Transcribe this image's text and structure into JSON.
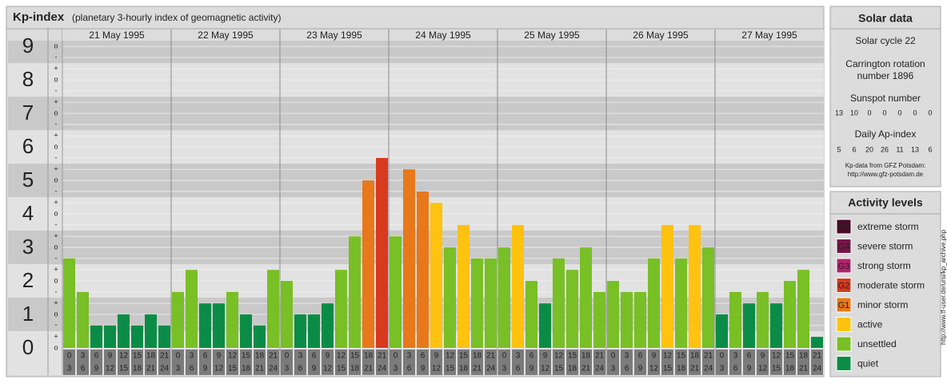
{
  "chart_data": {
    "type": "bar",
    "title": "Kp-index",
    "subtitle": "(planetary 3-hourly index of geomagnetic activity)",
    "ylim": [
      0,
      9.17
    ],
    "yticks": [
      0,
      1,
      2,
      3,
      4,
      5,
      6,
      7,
      8,
      9
    ],
    "minor_yticks": [
      {
        "value": 0,
        "label": "o"
      },
      {
        "value": 0.33,
        "label": "+"
      },
      {
        "value": 0.67,
        "label": "-"
      },
      {
        "value": 1,
        "label": "o"
      },
      {
        "value": 1.33,
        "label": "+"
      },
      {
        "value": 1.67,
        "label": "-"
      },
      {
        "value": 2,
        "label": "o"
      },
      {
        "value": 2.33,
        "label": "+"
      },
      {
        "value": 2.67,
        "label": "-"
      },
      {
        "value": 3,
        "label": "o"
      },
      {
        "value": 3.33,
        "label": "+"
      },
      {
        "value": 3.67,
        "label": "-"
      },
      {
        "value": 4,
        "label": "o"
      },
      {
        "value": 4.33,
        "label": "+"
      },
      {
        "value": 4.67,
        "label": "-"
      },
      {
        "value": 5,
        "label": "o"
      },
      {
        "value": 5.33,
        "label": "+"
      },
      {
        "value": 5.67,
        "label": "-"
      },
      {
        "value": 6,
        "label": "o"
      },
      {
        "value": 6.33,
        "label": "+"
      },
      {
        "value": 6.67,
        "label": "-"
      },
      {
        "value": 7,
        "label": "o"
      },
      {
        "value": 7.33,
        "label": "+"
      },
      {
        "value": 7.67,
        "label": "-"
      },
      {
        "value": 8,
        "label": "o"
      },
      {
        "value": 8.33,
        "label": "+"
      },
      {
        "value": 8.67,
        "label": "-"
      },
      {
        "value": 9,
        "label": "o"
      }
    ],
    "hours": [
      [
        "0",
        "3"
      ],
      [
        "3",
        "6"
      ],
      [
        "6",
        "9"
      ],
      [
        "9",
        "12"
      ],
      [
        "12",
        "15"
      ],
      [
        "15",
        "18"
      ],
      [
        "18",
        "21"
      ],
      [
        "21",
        "24"
      ]
    ],
    "days": [
      {
        "date": "21 May 1995",
        "values": [
          2.67,
          1.67,
          0.67,
          0.67,
          1,
          0.67,
          1,
          0.67
        ],
        "colors": [
          "#79bf26",
          "#79bf26",
          "#0b8c46",
          "#0b8c46",
          "#0b8c46",
          "#0b8c46",
          "#0b8c46",
          "#0b8c46"
        ]
      },
      {
        "date": "22 May 1995",
        "values": [
          1.67,
          2.33,
          1.33,
          1.33,
          1.67,
          1,
          0.67,
          2.33
        ],
        "colors": [
          "#79bf26",
          "#79bf26",
          "#0b8c46",
          "#0b8c46",
          "#79bf26",
          "#0b8c46",
          "#0b8c46",
          "#79bf26"
        ]
      },
      {
        "date": "23 May 1995",
        "values": [
          2,
          1,
          1,
          1.33,
          2.33,
          3.33,
          5,
          5.67
        ],
        "colors": [
          "#79bf26",
          "#0b8c46",
          "#0b8c46",
          "#0b8c46",
          "#79bf26",
          "#79bf26",
          "#e8781a",
          "#d73a1e"
        ]
      },
      {
        "date": "24 May 1995",
        "values": [
          3.33,
          5.33,
          4.67,
          4.33,
          3,
          3.67,
          2.67,
          2.67
        ],
        "colors": [
          "#79bf26",
          "#e8781a",
          "#e8781a",
          "#ffc20e",
          "#79bf26",
          "#ffc20e",
          "#79bf26",
          "#79bf26"
        ]
      },
      {
        "date": "25 May 1995",
        "values": [
          3,
          3.67,
          2,
          1.33,
          2.67,
          2.33,
          3,
          1.67
        ],
        "colors": [
          "#79bf26",
          "#ffc20e",
          "#79bf26",
          "#0b8c46",
          "#79bf26",
          "#79bf26",
          "#79bf26",
          "#79bf26"
        ]
      },
      {
        "date": "26 May 1995",
        "values": [
          2,
          1.67,
          1.67,
          2.67,
          3.67,
          2.67,
          3.67,
          3
        ],
        "colors": [
          "#79bf26",
          "#79bf26",
          "#79bf26",
          "#79bf26",
          "#ffc20e",
          "#79bf26",
          "#ffc20e",
          "#79bf26"
        ]
      },
      {
        "date": "27 May 1995",
        "values": [
          1,
          1.67,
          1.33,
          1.67,
          1.33,
          2,
          2.33,
          0.33
        ],
        "colors": [
          "#0b8c46",
          "#79bf26",
          "#0b8c46",
          "#79bf26",
          "#0b8c46",
          "#79bf26",
          "#79bf26",
          "#0b8c46"
        ]
      }
    ]
  },
  "solar_data": {
    "title": "Solar data",
    "solar_cycle": "Solar cycle 22",
    "carrington": [
      "Carrington rotation",
      "number 1896"
    ],
    "sunspot_title": "Sunspot number",
    "sunspot": [
      13,
      10,
      0,
      0,
      0,
      0,
      0
    ],
    "ap_title": "Daily Ap-index",
    "ap": [
      5,
      6,
      20,
      26,
      11,
      13,
      6
    ],
    "source": [
      "Kp-data from GFZ Potsdam:",
      "http://www.gfz-potsdam.de"
    ]
  },
  "activity_levels": {
    "title": "Activity levels",
    "items": [
      {
        "badge": "G5",
        "name": "extreme storm",
        "color": "#4a0a28"
      },
      {
        "badge": "G4",
        "name": "severe storm",
        "color": "#7a1448"
      },
      {
        "badge": "G3",
        "name": "strong storm",
        "color": "#b0246b"
      },
      {
        "badge": "G2",
        "name": "moderate storm",
        "color": "#d73a1e"
      },
      {
        "badge": "G1",
        "name": "minor storm",
        "color": "#e8781a"
      },
      {
        "name": "active",
        "color": "#ffc20e"
      },
      {
        "name": "unsettled",
        "color": "#79bf26"
      },
      {
        "name": "quiet",
        "color": "#0b8c46"
      }
    ]
  },
  "watermark": "http://www.tf-user.de/ursi/kp_archive.php"
}
